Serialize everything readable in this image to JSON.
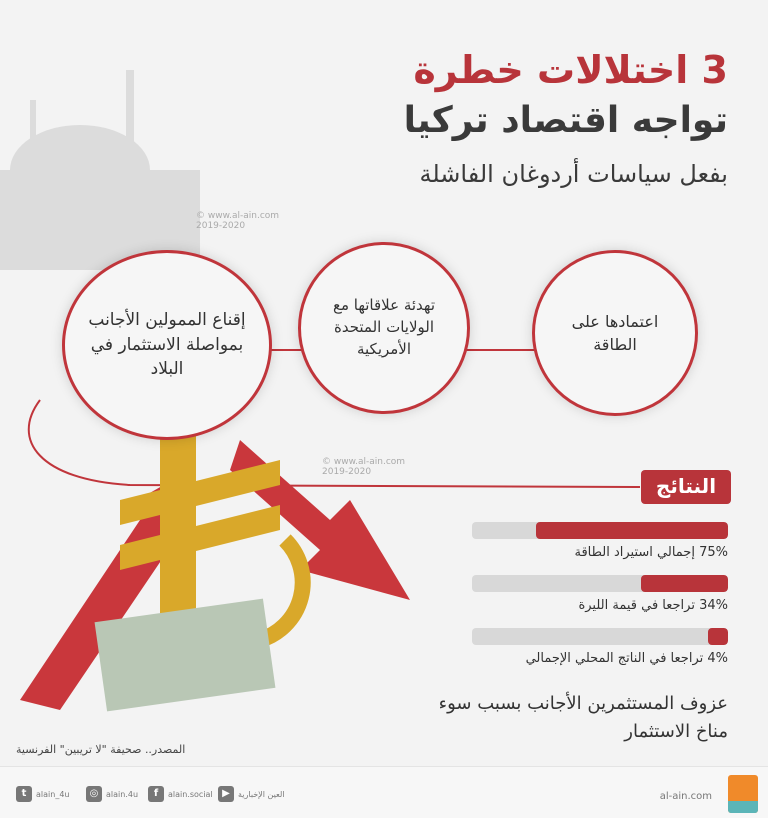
{
  "title": {
    "line1": "3 اختلالات خطرة",
    "line2": "تواجه اقتصاد تركيا",
    "line3": "بفعل سياسات أردوغان الفاشلة"
  },
  "watermark": {
    "site": "© www.al-ain.com",
    "years": "2019-2020"
  },
  "causes": [
    {
      "text": "اعتمادها على الطاقة"
    },
    {
      "text": "تهدئة علاقاتها مع الولايات المتحدة الأمريكية"
    },
    {
      "text": "إقناع الممولين الأجانب بمواصلة الاستثمار في البلاد"
    }
  ],
  "results": {
    "heading": "النتائج",
    "items": [
      {
        "percent": 75,
        "label": "75% إجمالي استيراد الطاقة"
      },
      {
        "percent": 34,
        "label": "34% تراجعا في قيمة الليرة"
      },
      {
        "percent": 4,
        "label": "4% تراجعا في الناتج المحلي الإجمالي"
      }
    ],
    "conclusion": "عزوف المستثمرين الأجانب بسبب سوء مناخ الاستثمار"
  },
  "colors": {
    "accent": "#b8343a",
    "track": "#d8d8d8"
  },
  "source": "المصدر.. صحيفة \"لا تريبين\" الفرنسية",
  "footer": {
    "site": "al-ain.com",
    "logo_text": "العين الإخبارية",
    "social": [
      {
        "icon": "twitter-icon",
        "handle": "alain_4u"
      },
      {
        "icon": "instagram-icon",
        "handle": "alain.4u"
      },
      {
        "icon": "facebook-icon",
        "handle": "alain.social"
      },
      {
        "icon": "youtube-icon",
        "handle": "العين الإخبارية"
      }
    ]
  }
}
